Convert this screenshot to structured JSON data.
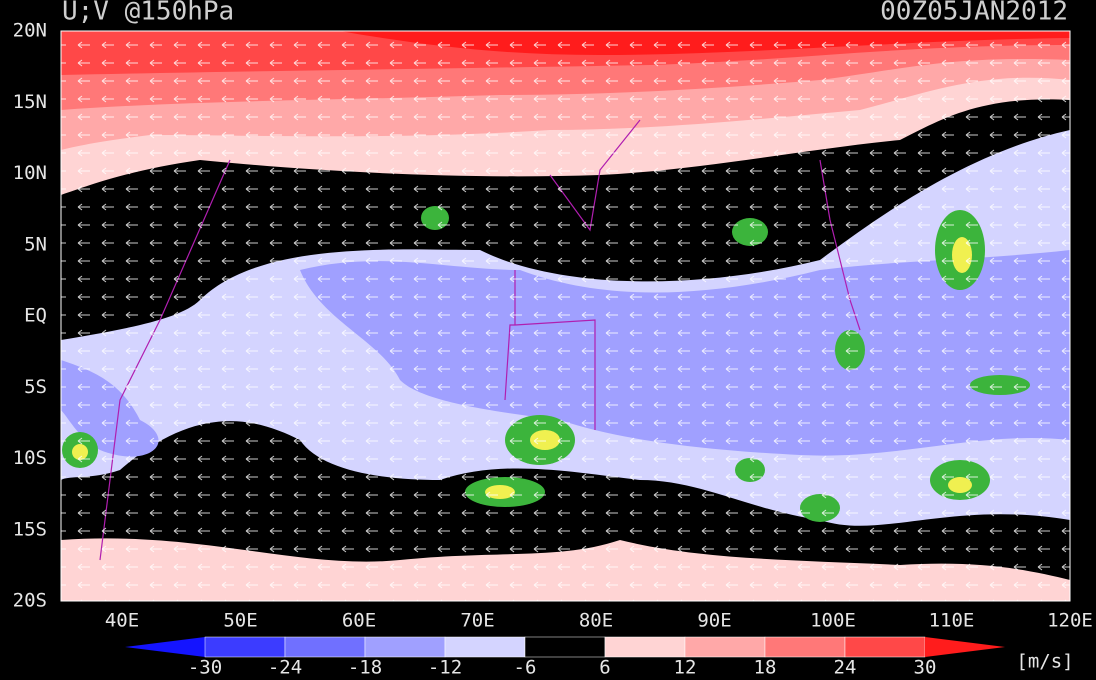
{
  "header": {
    "title": "U;V @150hPa",
    "date": "00Z05JAN2012"
  },
  "lat_labels": [
    "20N",
    "15N",
    "10N",
    "5N",
    "EQ",
    "5S",
    "10S",
    "15S",
    "20S"
  ],
  "lon_labels": [
    "40E",
    "50E",
    "60E",
    "70E",
    "80E",
    "90E",
    "100E",
    "110E",
    "120E"
  ],
  "colorbar": {
    "ticks": [
      -30,
      -24,
      -18,
      -12,
      -6,
      6,
      12,
      18,
      24,
      30
    ],
    "colors": [
      "#1414ff",
      "#3c3cff",
      "#7070ff",
      "#a0a0ff",
      "#d4d4ff",
      "#000000",
      "#ffd4d4",
      "#ffa8a8",
      "#ff7878",
      "#ff4848",
      "#ff1c1c"
    ],
    "unit": "[m/s]"
  }
}
